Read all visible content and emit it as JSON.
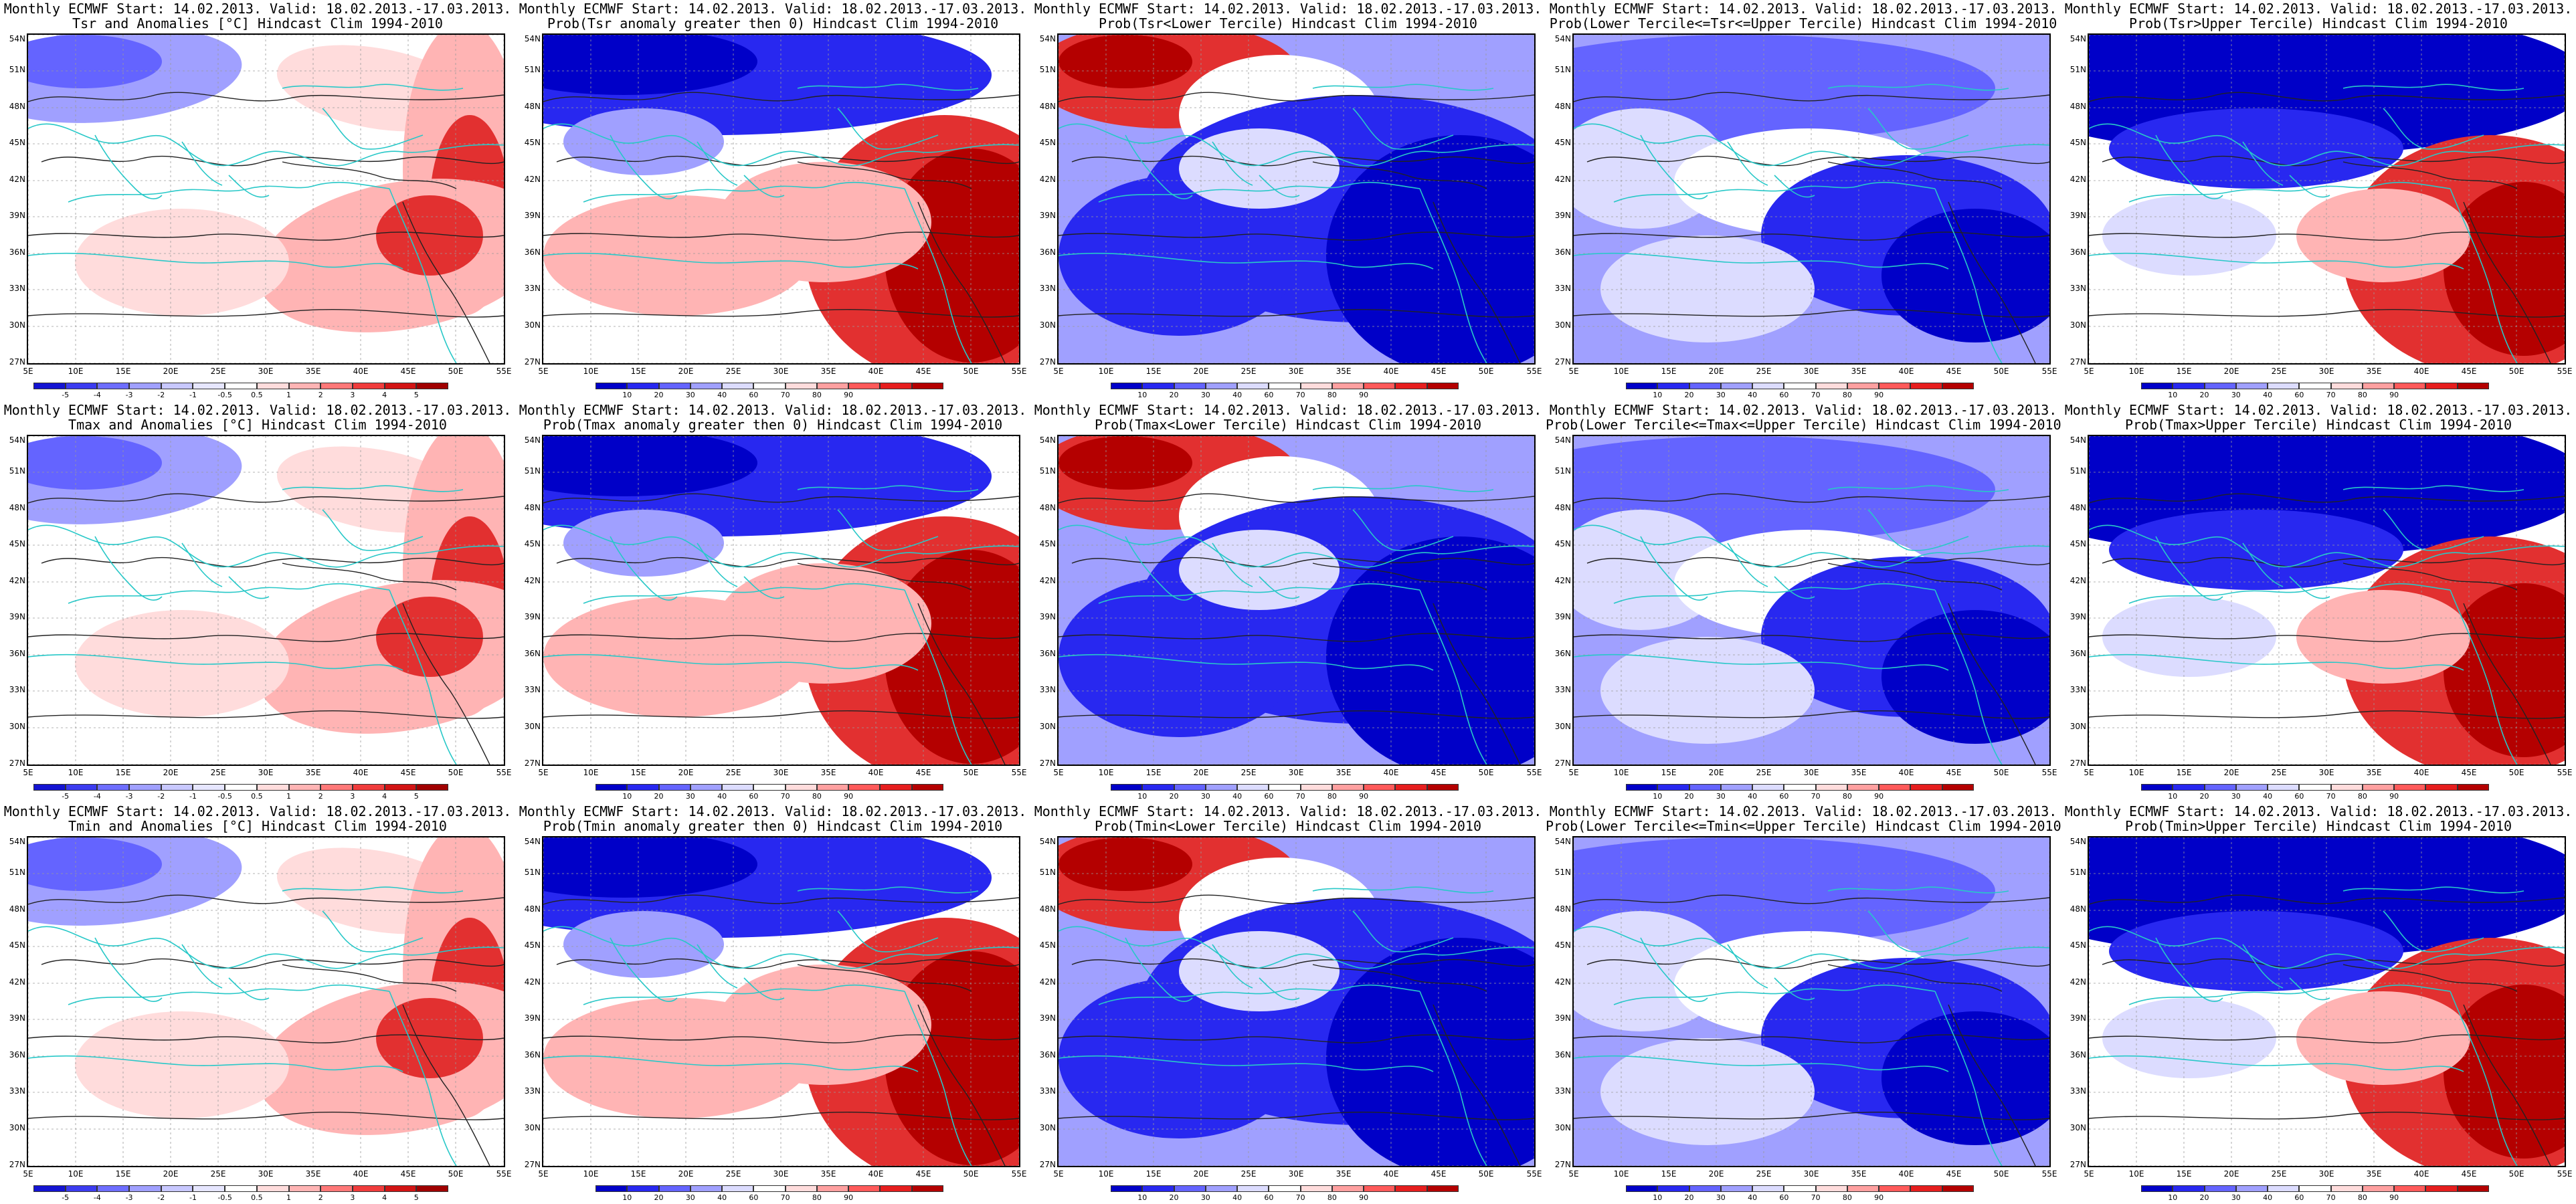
{
  "header_common": "Monthly ECMWF Start: 14.02.2013. Valid: 18.02.2013.-17.03.2013.",
  "rows": [
    {
      "variable": "Tsr",
      "titles": [
        "Tsr and Anomalies [°C] Hindcast Clim 1994-2010",
        "Prob(Tsr anomaly greater then 0) Hindcast Clim 1994-2010",
        "Prob(Tsr<Lower Tercile) Hindcast Clim 1994-2010",
        "Prob(Lower Tercile<=Tsr<=Upper Tercile) Hindcast Clim 1994-2010",
        "Prob(Tsr>Upper Tercile) Hindcast Clim 1994-2010"
      ]
    },
    {
      "variable": "Tmax",
      "titles": [
        "Tmax and Anomalies [°C] Hindcast Clim 1994-2010",
        "Prob(Tmax anomaly greater then 0) Hindcast Clim 1994-2010",
        "Prob(Tmax<Lower Tercile) Hindcast Clim 1994-2010",
        "Prob(Lower Tercile<=Tmax<=Upper Tercile) Hindcast Clim 1994-2010",
        "Prob(Tmax>Upper Tercile) Hindcast Clim 1994-2010"
      ]
    },
    {
      "variable": "Tmin",
      "titles": [
        "Tmin and Anomalies [°C] Hindcast Clim 1994-2010",
        "Prob(Tmin anomaly greater then 0) Hindcast Clim 1994-2010",
        "Prob(Tmin<Lower Tercile) Hindcast Clim 1994-2010",
        "Prob(Lower Tercile<=Tmin<=Upper Tercile) Hindcast Clim 1994-2010",
        "Prob(Tmin>Upper Tercile) Hindcast Clim 1994-2010"
      ]
    }
  ],
  "lat_labels": [
    "54N",
    "51N",
    "48N",
    "45N",
    "42N",
    "39N",
    "36N",
    "33N",
    "30N",
    "27N"
  ],
  "lon_labels": [
    "5E",
    "10E",
    "15E",
    "20E",
    "25E",
    "30E",
    "35E",
    "40E",
    "45E",
    "50E",
    "55E"
  ],
  "anomaly_colorbar": {
    "labels": [
      "-5",
      "-4",
      "-3",
      "-2",
      "-1",
      "-0.5",
      "0.5",
      "1",
      "2",
      "3",
      "4",
      "5"
    ],
    "colors": [
      "#1414d2",
      "#3c3cf0",
      "#6e6eff",
      "#a0a0ff",
      "#c8c8ff",
      "#e6e6ff",
      "#ffffff",
      "#ffdcdc",
      "#ffb4b4",
      "#ff7878",
      "#f03c3c",
      "#d21414",
      "#a00000"
    ]
  },
  "probability_colorbar": {
    "labels": [
      "10",
      "20",
      "30",
      "40",
      "60",
      "70",
      "80",
      "90"
    ],
    "colors": [
      "#0000c8",
      "#2828f0",
      "#6464ff",
      "#a0a0ff",
      "#dcdcff",
      "#ffffff",
      "#ffdcdc",
      "#ffa0a0",
      "#ff5a5a",
      "#e61e1e",
      "#b40000"
    ]
  },
  "palette": {
    "ocean_neutral": "#ffffff",
    "coast": "#28c8c8",
    "contour": "#222222",
    "gridline": "#9a9a9a"
  }
}
